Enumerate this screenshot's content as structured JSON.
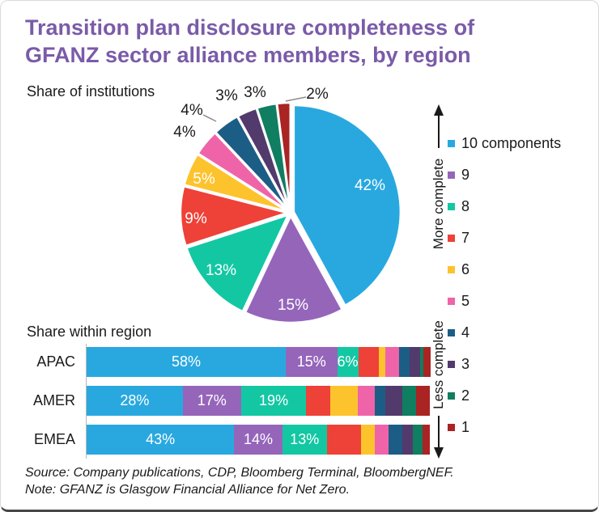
{
  "header": {
    "title": "Transition plan disclosure completeness of GFANZ sector alliance members, by region"
  },
  "sections": {
    "pie_heading": "Share of institutions",
    "bar_heading": "Share within region"
  },
  "legend": {
    "more_complete": "More complete",
    "less_complete": "Less complete",
    "items": [
      {
        "label": "10 components",
        "color": "#29a8e0"
      },
      {
        "label": "9",
        "color": "#9565ba"
      },
      {
        "label": "8",
        "color": "#13c7a3"
      },
      {
        "label": "7",
        "color": "#ee4137"
      },
      {
        "label": "6",
        "color": "#fdc32d"
      },
      {
        "label": "5",
        "color": "#ef64a9"
      },
      {
        "label": "4",
        "color": "#1c5d85"
      },
      {
        "label": "3",
        "color": "#523a6d"
      },
      {
        "label": "2",
        "color": "#107e60"
      },
      {
        "label": "1",
        "color": "#a92423"
      }
    ]
  },
  "footer": {
    "source": "Source: Company publications, CDP, Bloomberg Terminal, BloombergNEF.",
    "note": "Note: GFANZ is Glasgow Financial Alliance for Net Zero."
  },
  "chart_data": [
    {
      "type": "pie",
      "title": "Share of institutions",
      "categories": [
        "10 components",
        "9",
        "8",
        "7",
        "6",
        "5",
        "4",
        "3",
        "2",
        "1"
      ],
      "values": [
        42,
        15,
        13,
        9,
        5,
        4,
        4,
        3,
        3,
        2
      ],
      "labels": [
        "42%",
        "15%",
        "13%",
        "9%",
        "5%",
        "4%",
        "4%",
        "3%",
        "3%",
        "2%"
      ],
      "start_angle_deg": 0,
      "direction": "clockwise",
      "legend_position": "right"
    },
    {
      "type": "bar",
      "subtype": "stacked-horizontal",
      "title": "Share within region",
      "categories": [
        "APAC",
        "AMER",
        "EMEA"
      ],
      "xlim": [
        0,
        100
      ],
      "series": [
        {
          "name": "10 components",
          "values": [
            58,
            28,
            43
          ]
        },
        {
          "name": "9",
          "values": [
            15,
            17,
            14
          ]
        },
        {
          "name": "8",
          "values": [
            6,
            19,
            13
          ]
        },
        {
          "name": "7",
          "values": [
            6,
            7,
            10
          ]
        },
        {
          "name": "6",
          "values": [
            2,
            8,
            4
          ]
        },
        {
          "name": "5",
          "values": [
            4,
            5,
            4
          ]
        },
        {
          "name": "4",
          "values": [
            3,
            3,
            4
          ]
        },
        {
          "name": "3",
          "values": [
            3,
            5,
            3
          ]
        },
        {
          "name": "2",
          "values": [
            1,
            4,
            3
          ]
        },
        {
          "name": "1",
          "values": [
            2,
            4,
            2
          ]
        }
      ],
      "shown_segment_labels": [
        [
          "58%",
          "15%",
          "6%"
        ],
        [
          "28%",
          "17%",
          "19%"
        ],
        [
          "43%",
          "14%",
          "13%"
        ]
      ]
    }
  ]
}
